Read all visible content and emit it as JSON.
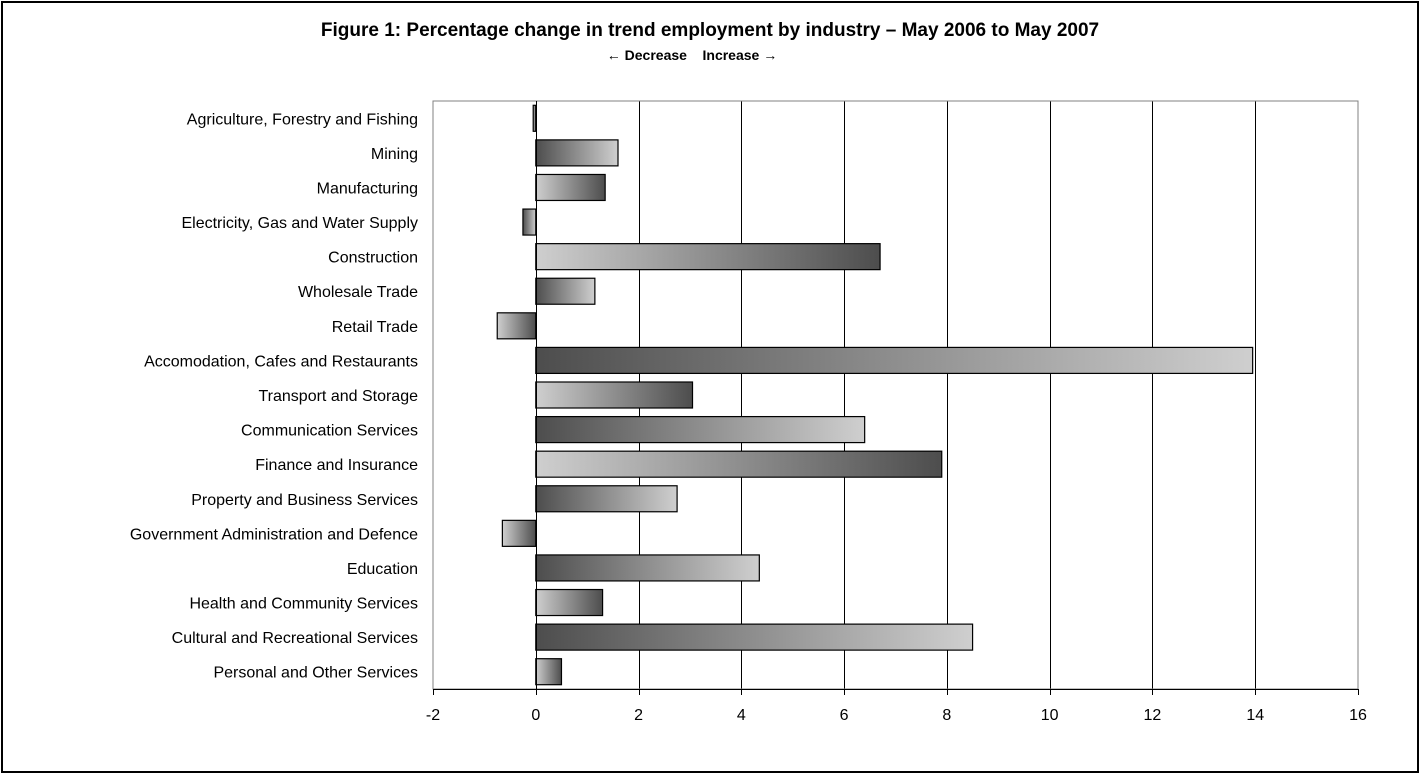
{
  "chart_data": {
    "type": "bar",
    "orientation": "horizontal",
    "title": "Figure 1: Percentage change in trend employment by industry – May 2006 to May 2007",
    "subtitle": {
      "left_arrow": "←",
      "left_text": "Decrease",
      "right_text": "Increase",
      "right_arrow": "→"
    },
    "categories": [
      "Agriculture, Forestry and Fishing",
      "Mining",
      "Manufacturing",
      "Electricity, Gas and Water Supply",
      "Construction",
      "Wholesale Trade",
      "Retail Trade",
      "Accomodation, Cafes and Restaurants",
      "Transport and Storage",
      "Communication Services",
      "Finance and Insurance",
      "Property and Business Services",
      "Government Administration and Defence",
      "Education",
      "Health and Community Services",
      "Cultural and Recreational Services",
      "Personal and Other Services"
    ],
    "values": [
      -0.05,
      1.6,
      1.35,
      -0.25,
      6.7,
      1.15,
      -0.75,
      13.95,
      3.05,
      6.4,
      7.9,
      2.75,
      -0.65,
      4.35,
      1.3,
      8.5,
      0.5
    ],
    "xlim": [
      -2,
      16
    ],
    "xticks": [
      -2,
      0,
      2,
      4,
      6,
      8,
      10,
      12,
      14,
      16
    ],
    "grid": "vertical",
    "legend": "none",
    "colors": {
      "bar_dark": "#4d4d4d",
      "bar_light": "#cfcfcf",
      "border": "#000000",
      "grid": "#000000"
    }
  }
}
